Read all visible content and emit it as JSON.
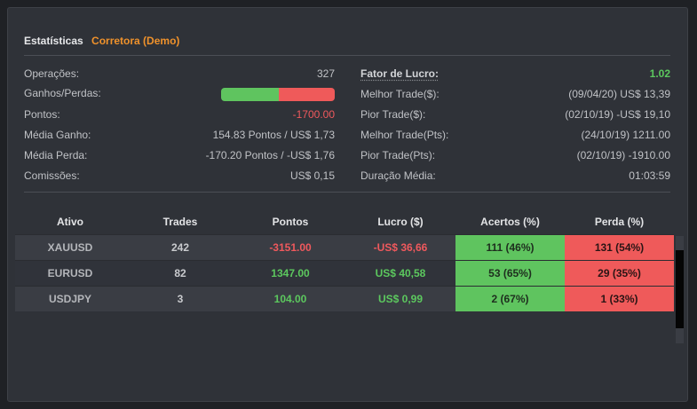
{
  "header": {
    "title": "Estatísticas",
    "broker": "Corretora (Demo)"
  },
  "stats_left": [
    {
      "label": "Operações:",
      "value": "327"
    },
    {
      "label": "Ganhos/Perdas:",
      "bar": {
        "gain_fraction": 0.51,
        "gain_color": "#5fc45f",
        "loss_color": "#ef5a5a"
      }
    },
    {
      "label": "Pontos:",
      "value": "-1700.00"
    },
    {
      "label": "Média Ganho:",
      "value": "154.83 Pontos / US$ 1,73"
    },
    {
      "label": "Média Perda:",
      "value": "-170.20 Pontos / -US$ 1,76"
    },
    {
      "label": "Comissões:",
      "value": "US$ 0,15"
    }
  ],
  "stats_right": [
    {
      "label": "Fator de Lucro:",
      "value": "1.02"
    },
    {
      "label": "Melhor Trade($):",
      "value": "(09/04/20) US$ 13,39"
    },
    {
      "label": "Pior Trade($):",
      "value": "(02/10/19) -US$ 19,10"
    },
    {
      "label": "Melhor Trade(Pts):",
      "value": "(24/10/19) 1211.00"
    },
    {
      "label": "Pior Trade(Pts):",
      "value": "(02/10/19) -1910.00"
    },
    {
      "label": "Duração Média:",
      "value": "01:03:59"
    }
  ],
  "table": {
    "columns": [
      "Ativo",
      "Trades",
      "Pontos",
      "Lucro ($)",
      "Acertos (%)",
      "Perda (%)"
    ],
    "rows": [
      {
        "asset": "XAUUSD",
        "trades": "242",
        "points": "-3151.00",
        "profit": "-US$ 36,66",
        "hits": "111 (46%)",
        "losses": "131 (54%)"
      },
      {
        "asset": "EURUSD",
        "trades": "82",
        "points": "1347.00",
        "profit": "US$ 40,58",
        "hits": "53 (65%)",
        "losses": "29 (35%)"
      },
      {
        "asset": "USDJPY",
        "trades": "3",
        "points": "104.00",
        "profit": "US$ 0,99",
        "hits": "2 (67%)",
        "losses": "1 (33%)"
      }
    ]
  },
  "colors": {
    "accent_orange": "#f0922b",
    "positive": "#5cc85e",
    "negative": "#f0595d",
    "panel_bg": "#2f3238"
  }
}
